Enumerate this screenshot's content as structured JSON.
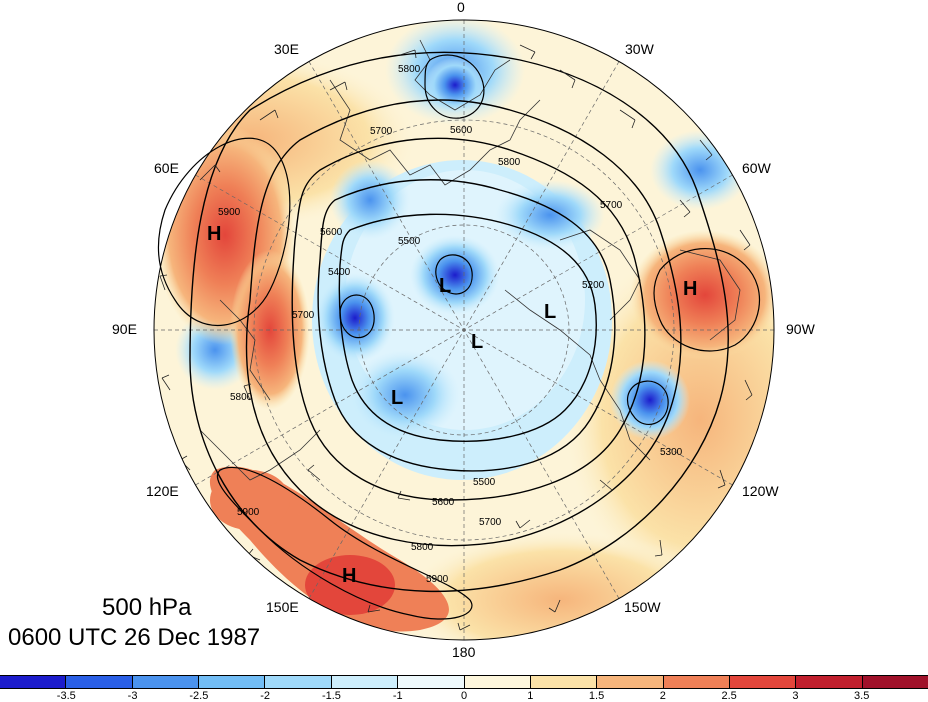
{
  "title": {
    "level": "500 hPa",
    "time": "0600 UTC 26 Dec 1987"
  },
  "longitude_labels": [
    "0",
    "30W",
    "60W",
    "90W",
    "120W",
    "150W",
    "180",
    "150E",
    "120E",
    "90E",
    "60E",
    "30E"
  ],
  "contours": {
    "labels": [
      "5800",
      "5700",
      "5600",
      "5500",
      "5400",
      "5200",
      "5900",
      "5600",
      "5500",
      "5700",
      "5800",
      "5900",
      "5700",
      "5800",
      "5900",
      "5800",
      "5700",
      "5600",
      "5300"
    ]
  },
  "pressure_centers": [
    {
      "text": "H",
      "kind": "high"
    },
    {
      "text": "H",
      "kind": "high"
    },
    {
      "text": "H",
      "kind": "high"
    },
    {
      "text": "L",
      "kind": "low"
    },
    {
      "text": "L",
      "kind": "low"
    },
    {
      "text": "L",
      "kind": "low"
    },
    {
      "text": "L",
      "kind": "low"
    }
  ],
  "colorbar": {
    "tick_labels": [
      "-3.5",
      "-3",
      "-2.5",
      "-2",
      "-1.5",
      "-1",
      "0",
      "1",
      "1.5",
      "2",
      "2.5",
      "3",
      "3.5"
    ],
    "colors": [
      "#1c1ccc",
      "#2a5fe6",
      "#4b93ee",
      "#72bdf5",
      "#9fd9fa",
      "#cdeefc",
      "#eef9fc",
      "#fdf6dc",
      "#fbe2a8",
      "#f6b57c",
      "#ef8057",
      "#e3463b",
      "#c11f2d",
      "#a0112a"
    ]
  },
  "chart_data": {
    "type": "polar-stereographic geopotential height map",
    "level": "500 hPa",
    "time": "0600 UTC 26 Dec 1987",
    "contour_levels": [
      5200,
      5300,
      5400,
      5500,
      5600,
      5700,
      5800,
      5900
    ],
    "colorbar_ticks": [
      -3.5,
      -3,
      -2.5,
      -2,
      -1.5,
      -1,
      0,
      1,
      1.5,
      2,
      2.5,
      3,
      3.5
    ]
  }
}
